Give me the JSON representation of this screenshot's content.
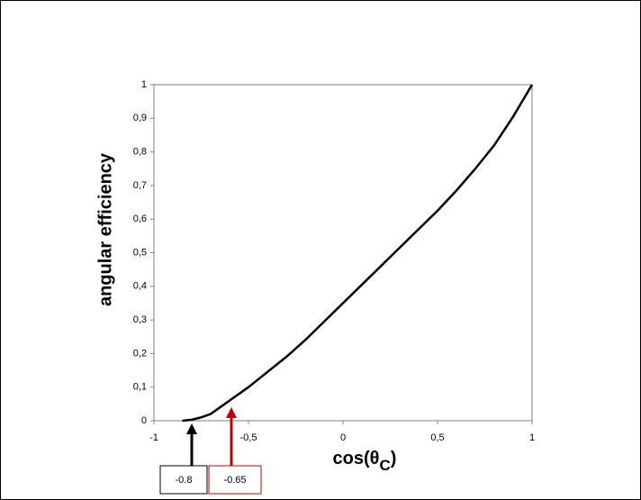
{
  "chart_data": {
    "type": "line",
    "y_label": "angular efficiency",
    "x_label": {
      "text": "cos(",
      "symbol": "θ",
      "sub": "C",
      "close": ")"
    },
    "x": [
      -0.85,
      -0.8,
      -0.75,
      -0.7,
      -0.65,
      -0.6,
      -0.5,
      -0.4,
      -0.3,
      -0.2,
      -0.1,
      0,
      0.1,
      0.2,
      0.3,
      0.4,
      0.5,
      0.6,
      0.7,
      0.8,
      0.9,
      1
    ],
    "series": [
      {
        "name": "angular efficiency",
        "color": "#000000",
        "values": [
          0,
          0.003,
          0.01,
          0.02,
          0.04,
          0.06,
          0.1,
          0.145,
          0.19,
          0.24,
          0.295,
          0.35,
          0.405,
          0.46,
          0.515,
          0.57,
          0.625,
          0.685,
          0.75,
          0.82,
          0.905,
          1
        ]
      }
    ],
    "xlim": [
      -1,
      1
    ],
    "xticks": [
      -1,
      {
        "value": -0.5,
        "label": "-0,5"
      },
      0,
      {
        "value": 0.5,
        "label": "0,5"
      },
      1
    ],
    "ylim": [
      0,
      1
    ],
    "yticks": [
      0,
      {
        "value": 0.1,
        "label": "0,1"
      },
      {
        "value": 0.2,
        "label": "0,2"
      },
      {
        "value": 0.3,
        "label": "0,3"
      },
      {
        "value": 0.4,
        "label": "0,4"
      },
      {
        "value": 0.5,
        "label": "0,5"
      },
      {
        "value": 0.6,
        "label": "0,6"
      },
      {
        "value": 0.7,
        "label": "0,7"
      },
      {
        "value": 0.8,
        "label": "0,8"
      },
      {
        "value": 0.9,
        "label": "0,9"
      },
      1
    ],
    "grid": false,
    "annotations": [
      {
        "text": "-0.8",
        "color": "#000000"
      },
      {
        "text": "-0.65",
        "color": "#c00000"
      }
    ]
  }
}
